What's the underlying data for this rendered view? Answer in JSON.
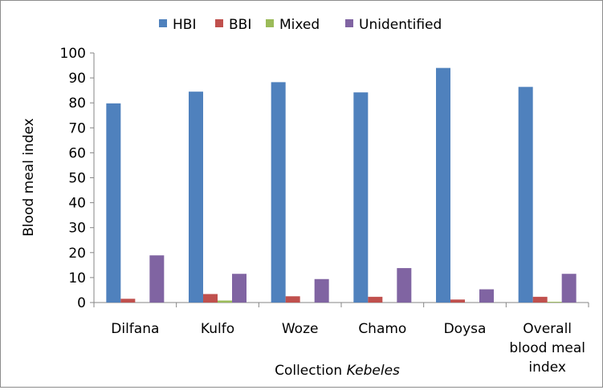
{
  "chart_data": {
    "type": "bar",
    "title": "",
    "xlabel": "Collection ",
    "xlabel_italic": "Kebeles",
    "ylabel": "Blood meal index",
    "ylim": [
      0,
      100
    ],
    "yticks": [
      0,
      10,
      20,
      30,
      40,
      50,
      60,
      70,
      80,
      90,
      100
    ],
    "grid": false,
    "legend_position": "top",
    "categories": [
      [
        "Dilfana"
      ],
      [
        "Kulfo"
      ],
      [
        "Woze"
      ],
      [
        "Chamo"
      ],
      [
        "Doysa"
      ],
      [
        "Overall",
        "blood meal",
        "index"
      ]
    ],
    "series": [
      {
        "name": "HBI",
        "color": "#4f81bd",
        "values": [
          79.8,
          84.5,
          88.3,
          84.2,
          94.0,
          86.4
        ]
      },
      {
        "name": "BBI",
        "color": "#c0504d",
        "values": [
          1.5,
          3.4,
          2.5,
          2.3,
          1.2,
          2.3
        ]
      },
      {
        "name": "Mixed",
        "color": "#9bbb59",
        "values": [
          0,
          0.8,
          0,
          0,
          0,
          0.3
        ]
      },
      {
        "name": "Unidentified",
        "color": "#8064a2",
        "values": [
          18.9,
          11.5,
          9.4,
          13.8,
          5.3,
          11.5
        ]
      }
    ]
  }
}
